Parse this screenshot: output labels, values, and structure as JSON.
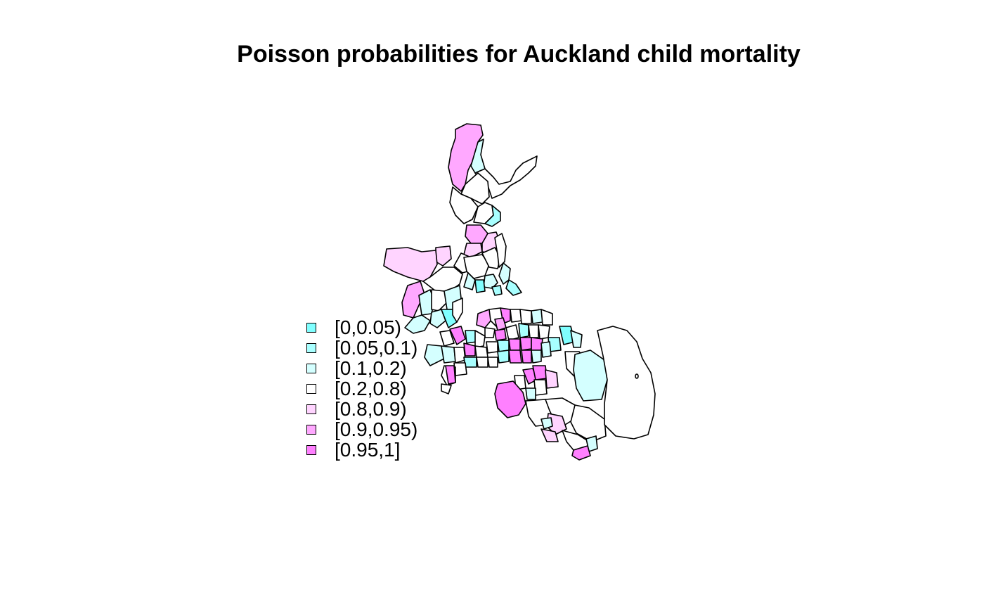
{
  "title": "Poisson probabilities for Auckland child mortality",
  "chart_data": {
    "type": "choropleth",
    "title": "Poisson probabilities for Auckland child mortality",
    "legend": {
      "placement": "left",
      "classes": [
        {
          "label": "[0,0.05)",
          "color": "#80FFFF"
        },
        {
          "label": "[0.05,0.1)",
          "color": "#A8FFFF"
        },
        {
          "label": "[0.1,0.2)",
          "color": "#D4FFFF"
        },
        {
          "label": "[0.2,0.8)",
          "color": "#FFFFFF"
        },
        {
          "label": "[0.8,0.9)",
          "color": "#FFD4FF"
        },
        {
          "label": "[0.9,0.95)",
          "color": "#FFA8FF"
        },
        {
          "label": "[0.95,1]",
          "color": "#FF80FF"
        }
      ]
    }
  }
}
